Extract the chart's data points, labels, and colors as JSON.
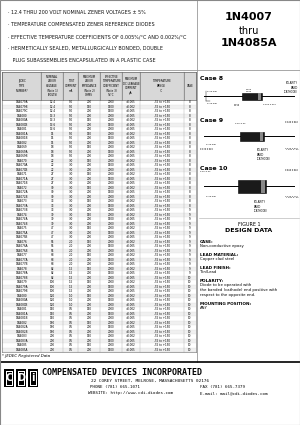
{
  "bg_color": "#e8e4dc",
  "content_bg": "#ffffff",
  "header_bg": "#ffffff",
  "footer_bg": "#ffffff",
  "title_part_left": "1N4007",
  "title_part_thru": "thru",
  "title_part_right": "1N4085A",
  "bullets": [
    "  · 12.4 THRU 200 VOLT NOMINAL ZENER VOLTAGES ± 5%",
    "  · TEMPERATURE COMPENSATED ZENER REFERENCE DIODES",
    "  · EFFECTIVE TEMPERATURE COEFFICIENTS OF 0.005%/°C AND 0.002%/°C",
    "  · HERMETICALLY SEALED, METALLURGICALLY BONDED, DOUBLE",
    "     PLUG SUBASSEMBLIES ENCAPSULATED IN A PLASTIC CASE"
  ],
  "table_rows": [
    [
      "1N4079A",
      "12.4",
      "5.0",
      "200",
      "2000",
      "±0.005",
      "-55 to +150",
      "8"
    ],
    [
      "1N4079B",
      "12.4",
      "5.0",
      "150",
      "1500",
      "±0.002",
      "-55 to +150",
      "8"
    ],
    [
      "1N4079C",
      "12.4",
      "5.0",
      "200",
      "1500",
      "±0.005",
      "-55 to +150",
      "8"
    ],
    [
      "1N4080",
      "13.3",
      "5.0",
      "200",
      "2000",
      "±0.005",
      "-55 to +150",
      "8"
    ],
    [
      "1N4080A",
      "13.3",
      "5.0",
      "150",
      "2000",
      "±0.002",
      "-55 to +150",
      "8"
    ],
    [
      "1N4080B",
      "13.6",
      "5.0",
      "200",
      "1500",
      "±0.005",
      "-55 to +150",
      "8"
    ],
    [
      "1N4081",
      "13.6",
      "5.0",
      "200",
      "2000",
      "±0.005",
      "-55 to +150",
      "8"
    ],
    [
      "1N4081A",
      "15",
      "5.0",
      "150",
      "2000",
      "±0.002",
      "-55 to +150",
      "8"
    ],
    [
      "1N4081B",
      "15",
      "5.0",
      "200",
      "1500",
      "±0.005",
      "-55 to +150",
      "8"
    ],
    [
      "1N4082",
      "15",
      "5.0",
      "200",
      "2000",
      "±0.005",
      "-55 to +150",
      "8"
    ],
    [
      "1N4069",
      "18",
      "5.0",
      "150",
      "2000",
      "±0.002",
      "-55 to +150",
      "8"
    ],
    [
      "1N4069A",
      "18",
      "5.0",
      "200",
      "1500",
      "±0.005",
      "-55 to +150",
      "8"
    ],
    [
      "1N4069B",
      "18",
      "5.0",
      "200",
      "2000",
      "±0.005",
      "-55 to +150",
      "8"
    ],
    [
      "1N4070",
      "22",
      "3.0",
      "150",
      "2000",
      "±0.002",
      "-55 to +150",
      "8"
    ],
    [
      "1N4070A",
      "22",
      "3.0",
      "200",
      "1500",
      "±0.005",
      "-55 to +150",
      "8"
    ],
    [
      "1N4070B",
      "22",
      "3.0",
      "200",
      "2000",
      "±0.005",
      "-55 to +150",
      "8"
    ],
    [
      "1N4071",
      "27",
      "3.0",
      "150",
      "2000",
      "±0.002",
      "-55 to +150",
      "8"
    ],
    [
      "1N4071A",
      "27",
      "3.0",
      "200",
      "1500",
      "±0.005",
      "-55 to +150",
      "8"
    ],
    [
      "1N4071B",
      "27",
      "3.0",
      "200",
      "2000",
      "±0.005",
      "-55 to +150",
      "8"
    ],
    [
      "1N4072",
      "30",
      "3.0",
      "150",
      "2000",
      "±0.002",
      "-55 to +150",
      "8"
    ],
    [
      "1N4072A",
      "30",
      "3.0",
      "200",
      "1500",
      "±0.005",
      "-55 to +150",
      "8"
    ],
    [
      "1N4072B",
      "30",
      "3.0",
      "200",
      "2000",
      "±0.005",
      "-55 to +150",
      "8"
    ],
    [
      "1N4073",
      "33",
      "3.0",
      "150",
      "2000",
      "±0.002",
      "-55 to +150",
      "8"
    ],
    [
      "1N4073A",
      "33",
      "3.0",
      "200",
      "1500",
      "±0.005",
      "-55 to +150",
      "8"
    ],
    [
      "1N4073B",
      "33",
      "3.0",
      "200",
      "2000",
      "±0.005",
      "-55 to +150",
      "9"
    ],
    [
      "1N4074",
      "39",
      "3.0",
      "150",
      "2000",
      "±0.002",
      "-55 to +150",
      "9"
    ],
    [
      "1N4074A",
      "39",
      "3.0",
      "200",
      "1500",
      "±0.005",
      "-55 to +150",
      "9"
    ],
    [
      "1N4074B",
      "39",
      "3.0",
      "200",
      "2000",
      "±0.005",
      "-55 to +150",
      "9"
    ],
    [
      "1N4075",
      "47",
      "3.0",
      "150",
      "2000",
      "±0.002",
      "-55 to +150",
      "9"
    ],
    [
      "1N4075A",
      "47",
      "3.0",
      "200",
      "1500",
      "±0.005",
      "-55 to +150",
      "9"
    ],
    [
      "1N4075B",
      "47",
      "3.0",
      "200",
      "2000",
      "±0.005",
      "-55 to +150",
      "9"
    ],
    [
      "1N4076",
      "56",
      "2.0",
      "150",
      "2000",
      "±0.002",
      "-55 to +150",
      "9"
    ],
    [
      "1N4076A",
      "56",
      "2.0",
      "200",
      "1500",
      "±0.005",
      "-55 to +150",
      "9"
    ],
    [
      "1N4076B",
      "56",
      "2.0",
      "200",
      "2000",
      "±0.005",
      "-55 to +150",
      "9"
    ],
    [
      "1N4077",
      "68",
      "2.0",
      "150",
      "2000",
      "±0.002",
      "-55 to +150",
      "9"
    ],
    [
      "1N4077A",
      "68",
      "2.0",
      "200",
      "1500",
      "±0.005",
      "-55 to +150",
      "9"
    ],
    [
      "1N4077B",
      "68",
      "2.0",
      "200",
      "2000",
      "±0.005",
      "-55 to +150",
      "9"
    ],
    [
      "1N4078",
      "82",
      "1.5",
      "150",
      "2000",
      "±0.002",
      "-55 to +150",
      "9"
    ],
    [
      "1N4078A",
      "82",
      "1.5",
      "200",
      "1500",
      "±0.005",
      "-55 to +150",
      "9"
    ],
    [
      "1N4078B",
      "82",
      "1.5",
      "200",
      "2000",
      "±0.005",
      "-55 to +150",
      "10"
    ],
    [
      "1N4079",
      "100",
      "1.5",
      "150",
      "2000",
      "±0.002",
      "-55 to +150",
      "10"
    ],
    [
      "1N4079A",
      "100",
      "1.5",
      "200",
      "1500",
      "±0.005",
      "-55 to +150",
      "10"
    ],
    [
      "1N4079B",
      "100",
      "1.5",
      "200",
      "2000",
      "±0.005",
      "-55 to +150",
      "10"
    ],
    [
      "1N4080",
      "120",
      "1.0",
      "150",
      "2000",
      "±0.002",
      "-55 to +150",
      "10"
    ],
    [
      "1N4080A",
      "120",
      "1.0",
      "200",
      "1500",
      "±0.005",
      "-55 to +150",
      "10"
    ],
    [
      "1N4080B",
      "120",
      "1.0",
      "200",
      "2000",
      "±0.005",
      "-55 to +150",
      "10"
    ],
    [
      "1N4081",
      "150",
      "0.5",
      "150",
      "2000",
      "±0.002",
      "-55 to +150",
      "10"
    ],
    [
      "1N4081A",
      "150",
      "0.5",
      "200",
      "1500",
      "±0.005",
      "-55 to +150",
      "10"
    ],
    [
      "1N4081B",
      "150",
      "0.5",
      "200",
      "2000",
      "±0.005",
      "-55 to +150",
      "10"
    ],
    [
      "1N4082",
      "180",
      "0.5",
      "150",
      "2000",
      "±0.002",
      "-55 to +150",
      "10"
    ],
    [
      "1N4082A",
      "180",
      "0.5",
      "200",
      "1500",
      "±0.005",
      "-55 to +150",
      "10"
    ],
    [
      "1N4082B",
      "180",
      "0.5",
      "200",
      "2000",
      "±0.005",
      "-55 to +150",
      "10"
    ],
    [
      "1N4083",
      "200",
      "0.5",
      "150",
      "2000",
      "±0.002",
      "-55 to +150",
      "10"
    ],
    [
      "1N4083A",
      "200",
      "0.5",
      "200",
      "1500",
      "±0.005",
      "-55 to +150",
      "10"
    ],
    [
      "1N4085",
      "200",
      "0.5",
      "150",
      "2000",
      "±0.002",
      "-55 to +150",
      "10"
    ],
    [
      "1N4085A",
      "200",
      "0.5",
      "200",
      "1500",
      "±0.005",
      "-55 to +150",
      "10"
    ]
  ],
  "col_headers": [
    "JEDEC\nTYPE\nNUMBER*",
    "NOMINAL\nZENER\nVOLTAGE\n(Note 1)\n(VOLTS)",
    "TEST\nCURRENT\nmA",
    "MAXIMUM\nZENER\nIMPEDANCE\n(Note 2)\nOHMS",
    "EFFECTIVE\nTEMPERATURE\nCOEFFICIENT\n(Note 3)\n%/°C",
    "MAXIMUM\nDC LEAKAGE\nCURRENT\nµA",
    "TEMPERATURE\nRANGE\n°C",
    "CASE"
  ],
  "jedec_note": "* JEDEC Registered Data",
  "footer_company": "COMPENSATED DEVICES INCORPORATED",
  "footer_address": "22 COREY STREET, MELROSE, MASSACHUSETTS 02176",
  "footer_phone": "PHONE (781) 665-1071",
  "footer_fax": "FAX (781) 665-7379",
  "footer_website": "WEBSITE: http://www.cdi-diodes.com",
  "footer_email": "E-mail: mail@cdi-diodes.com",
  "design_data": [
    [
      "CASE:",
      "Non-conductive epoxy"
    ],
    [
      "LEAD MATERIAL:",
      "Copper clad steel"
    ],
    [
      "LEAD FINISH:",
      "Tin/Lead"
    ],
    [
      "POLARITY:",
      "Diode to be operated with\nthe banded (cathode) end positive with\nrespect to the opposite end."
    ],
    [
      "MOUNTING POSITION:",
      "ANY"
    ]
  ]
}
